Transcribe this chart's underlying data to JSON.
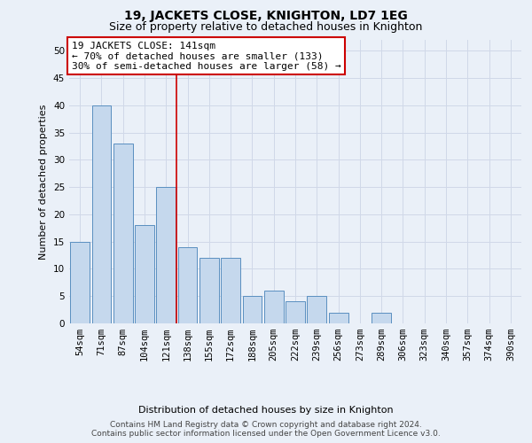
{
  "title": "19, JACKETS CLOSE, KNIGHTON, LD7 1EG",
  "subtitle": "Size of property relative to detached houses in Knighton",
  "xlabel": "Distribution of detached houses by size in Knighton",
  "ylabel": "Number of detached properties",
  "categories": [
    "54sqm",
    "71sqm",
    "87sqm",
    "104sqm",
    "121sqm",
    "138sqm",
    "155sqm",
    "172sqm",
    "188sqm",
    "205sqm",
    "222sqm",
    "239sqm",
    "256sqm",
    "273sqm",
    "289sqm",
    "306sqm",
    "323sqm",
    "340sqm",
    "357sqm",
    "374sqm",
    "390sqm"
  ],
  "values": [
    15,
    40,
    33,
    18,
    25,
    14,
    12,
    12,
    5,
    6,
    4,
    5,
    2,
    0,
    2,
    0,
    0,
    0,
    0,
    0,
    0
  ],
  "bar_color": "#c5d8ed",
  "bar_edge_color": "#5a8fc0",
  "grid_color": "#d0d8e8",
  "background_color": "#eaf0f8",
  "annotation_box_color": "#ffffff",
  "annotation_border_color": "#cc0000",
  "vertical_line_index": 4,
  "vertical_line_color": "#cc0000",
  "annotation_text_line1": "19 JACKETS CLOSE: 141sqm",
  "annotation_text_line2": "← 70% of detached houses are smaller (133)",
  "annotation_text_line3": "30% of semi-detached houses are larger (58) →",
  "footer_line1": "Contains HM Land Registry data © Crown copyright and database right 2024.",
  "footer_line2": "Contains public sector information licensed under the Open Government Licence v3.0.",
  "ylim": [
    0,
    52
  ],
  "yticks": [
    0,
    5,
    10,
    15,
    20,
    25,
    30,
    35,
    40,
    45,
    50
  ],
  "title_fontsize": 10,
  "subtitle_fontsize": 9,
  "axis_label_fontsize": 8,
  "tick_fontsize": 7.5,
  "annotation_fontsize": 8,
  "footer_fontsize": 6.5
}
